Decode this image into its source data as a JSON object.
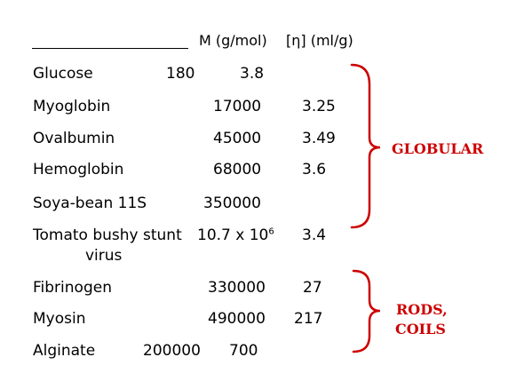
{
  "header": {
    "mw": "M (g/mol)",
    "visc": "[η] (ml/g)"
  },
  "rows": [
    {
      "name": "Glucose",
      "mw": "180",
      "visc": "3.8"
    },
    {
      "name": "Myoglobin",
      "mw": "17000",
      "visc": "3.25"
    },
    {
      "name": "Ovalbumin",
      "mw": "45000",
      "visc": "3.49"
    },
    {
      "name": "Hemoglobin",
      "mw": "68000",
      "visc": "3.6"
    },
    {
      "name": "Soya-bean 11S",
      "mw": "350000",
      "visc": ""
    },
    {
      "name": "Tomato bushy stunt",
      "name2": "virus",
      "mw_base": "10.7 x 10",
      "mw_exp": "6",
      "visc": "3.4"
    },
    {
      "name": "Fibrinogen",
      "mw": "330000",
      "visc": "27"
    },
    {
      "name": "Myosin",
      "mw": "490000",
      "visc": "217"
    },
    {
      "name": "Alginate",
      "mw": "200000",
      "visc": "700"
    }
  ],
  "groups": {
    "globular": {
      "label": "GLOBULAR",
      "color": "#cc0000"
    },
    "rods": {
      "label_line1": "RODS,",
      "label_line2": "COILS",
      "color": "#cc0000"
    }
  }
}
